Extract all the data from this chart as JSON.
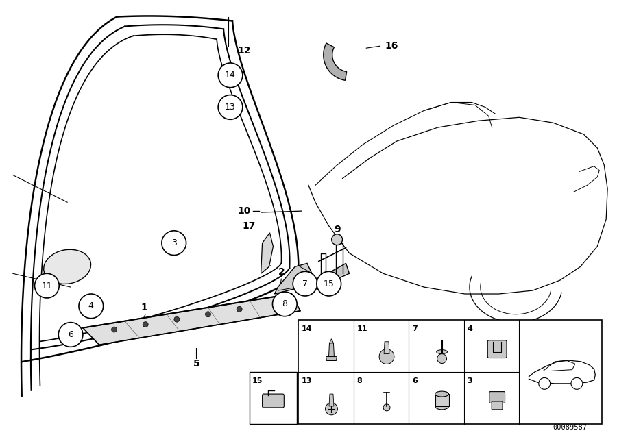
{
  "background_color": "#ffffff",
  "line_color": "#000000",
  "diagram_number": "00089587",
  "border_color": "#888888",
  "figsize": [
    9.0,
    6.35
  ],
  "dpi": 100,
  "callout_r": 0.021,
  "callout_fontsize": 9,
  "label_fontsize": 9,
  "label_bold_fontsize": 10
}
